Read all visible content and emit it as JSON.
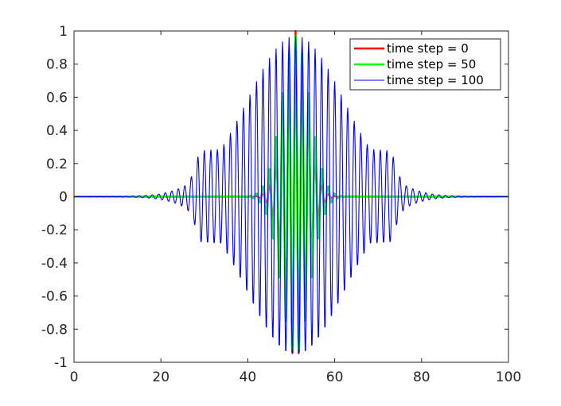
{
  "chart_data": {
    "type": "line",
    "title": "",
    "xlabel": "",
    "ylabel": "",
    "xlim": [
      0,
      100
    ],
    "ylim": [
      -1,
      1
    ],
    "grid": false,
    "legend_position": "top-right",
    "x_ticks": [
      0,
      20,
      40,
      60,
      80,
      100
    ],
    "x_tick_labels": [
      "0",
      "20",
      "40",
      "60",
      "80",
      "100"
    ],
    "y_ticks": [
      -1,
      -0.8,
      -0.6,
      -0.4,
      -0.2,
      0,
      0.2,
      0.4,
      0.6,
      0.8,
      1
    ],
    "y_tick_labels": [
      "-1",
      "-0.8",
      "-0.6",
      "-0.4",
      "-0.2",
      "0",
      "0.2",
      "0.4",
      "0.6",
      "0.8",
      "1"
    ],
    "sampling": {
      "x_start": 0,
      "x_end": 100,
      "dx": 0.1
    },
    "series": [
      {
        "name": "time step = 0",
        "color": "#ff0000",
        "shape": {
          "kind": "cos-wavepacket",
          "center": 51,
          "sigma": 2.6,
          "wavelength": 1.5,
          "amplitude": 1.0
        }
      },
      {
        "name": "time step = 50",
        "color": "#00ff00",
        "shape": {
          "kind": "cos-wavepacket",
          "center": 51,
          "sigma": 3.2,
          "wavelength": 1.5,
          "amplitude": 0.97
        }
      },
      {
        "name": "time step = 100",
        "color": "#0000ff",
        "shape": {
          "kind": "cos-wavepacket",
          "center": 51,
          "sigma": 11,
          "wavelength": 1.5,
          "amplitude": 0.97,
          "floor_amplitude": 0.3,
          "floor_start": 29,
          "floor_end": 73,
          "support": [
            22,
            80
          ]
        }
      }
    ]
  }
}
